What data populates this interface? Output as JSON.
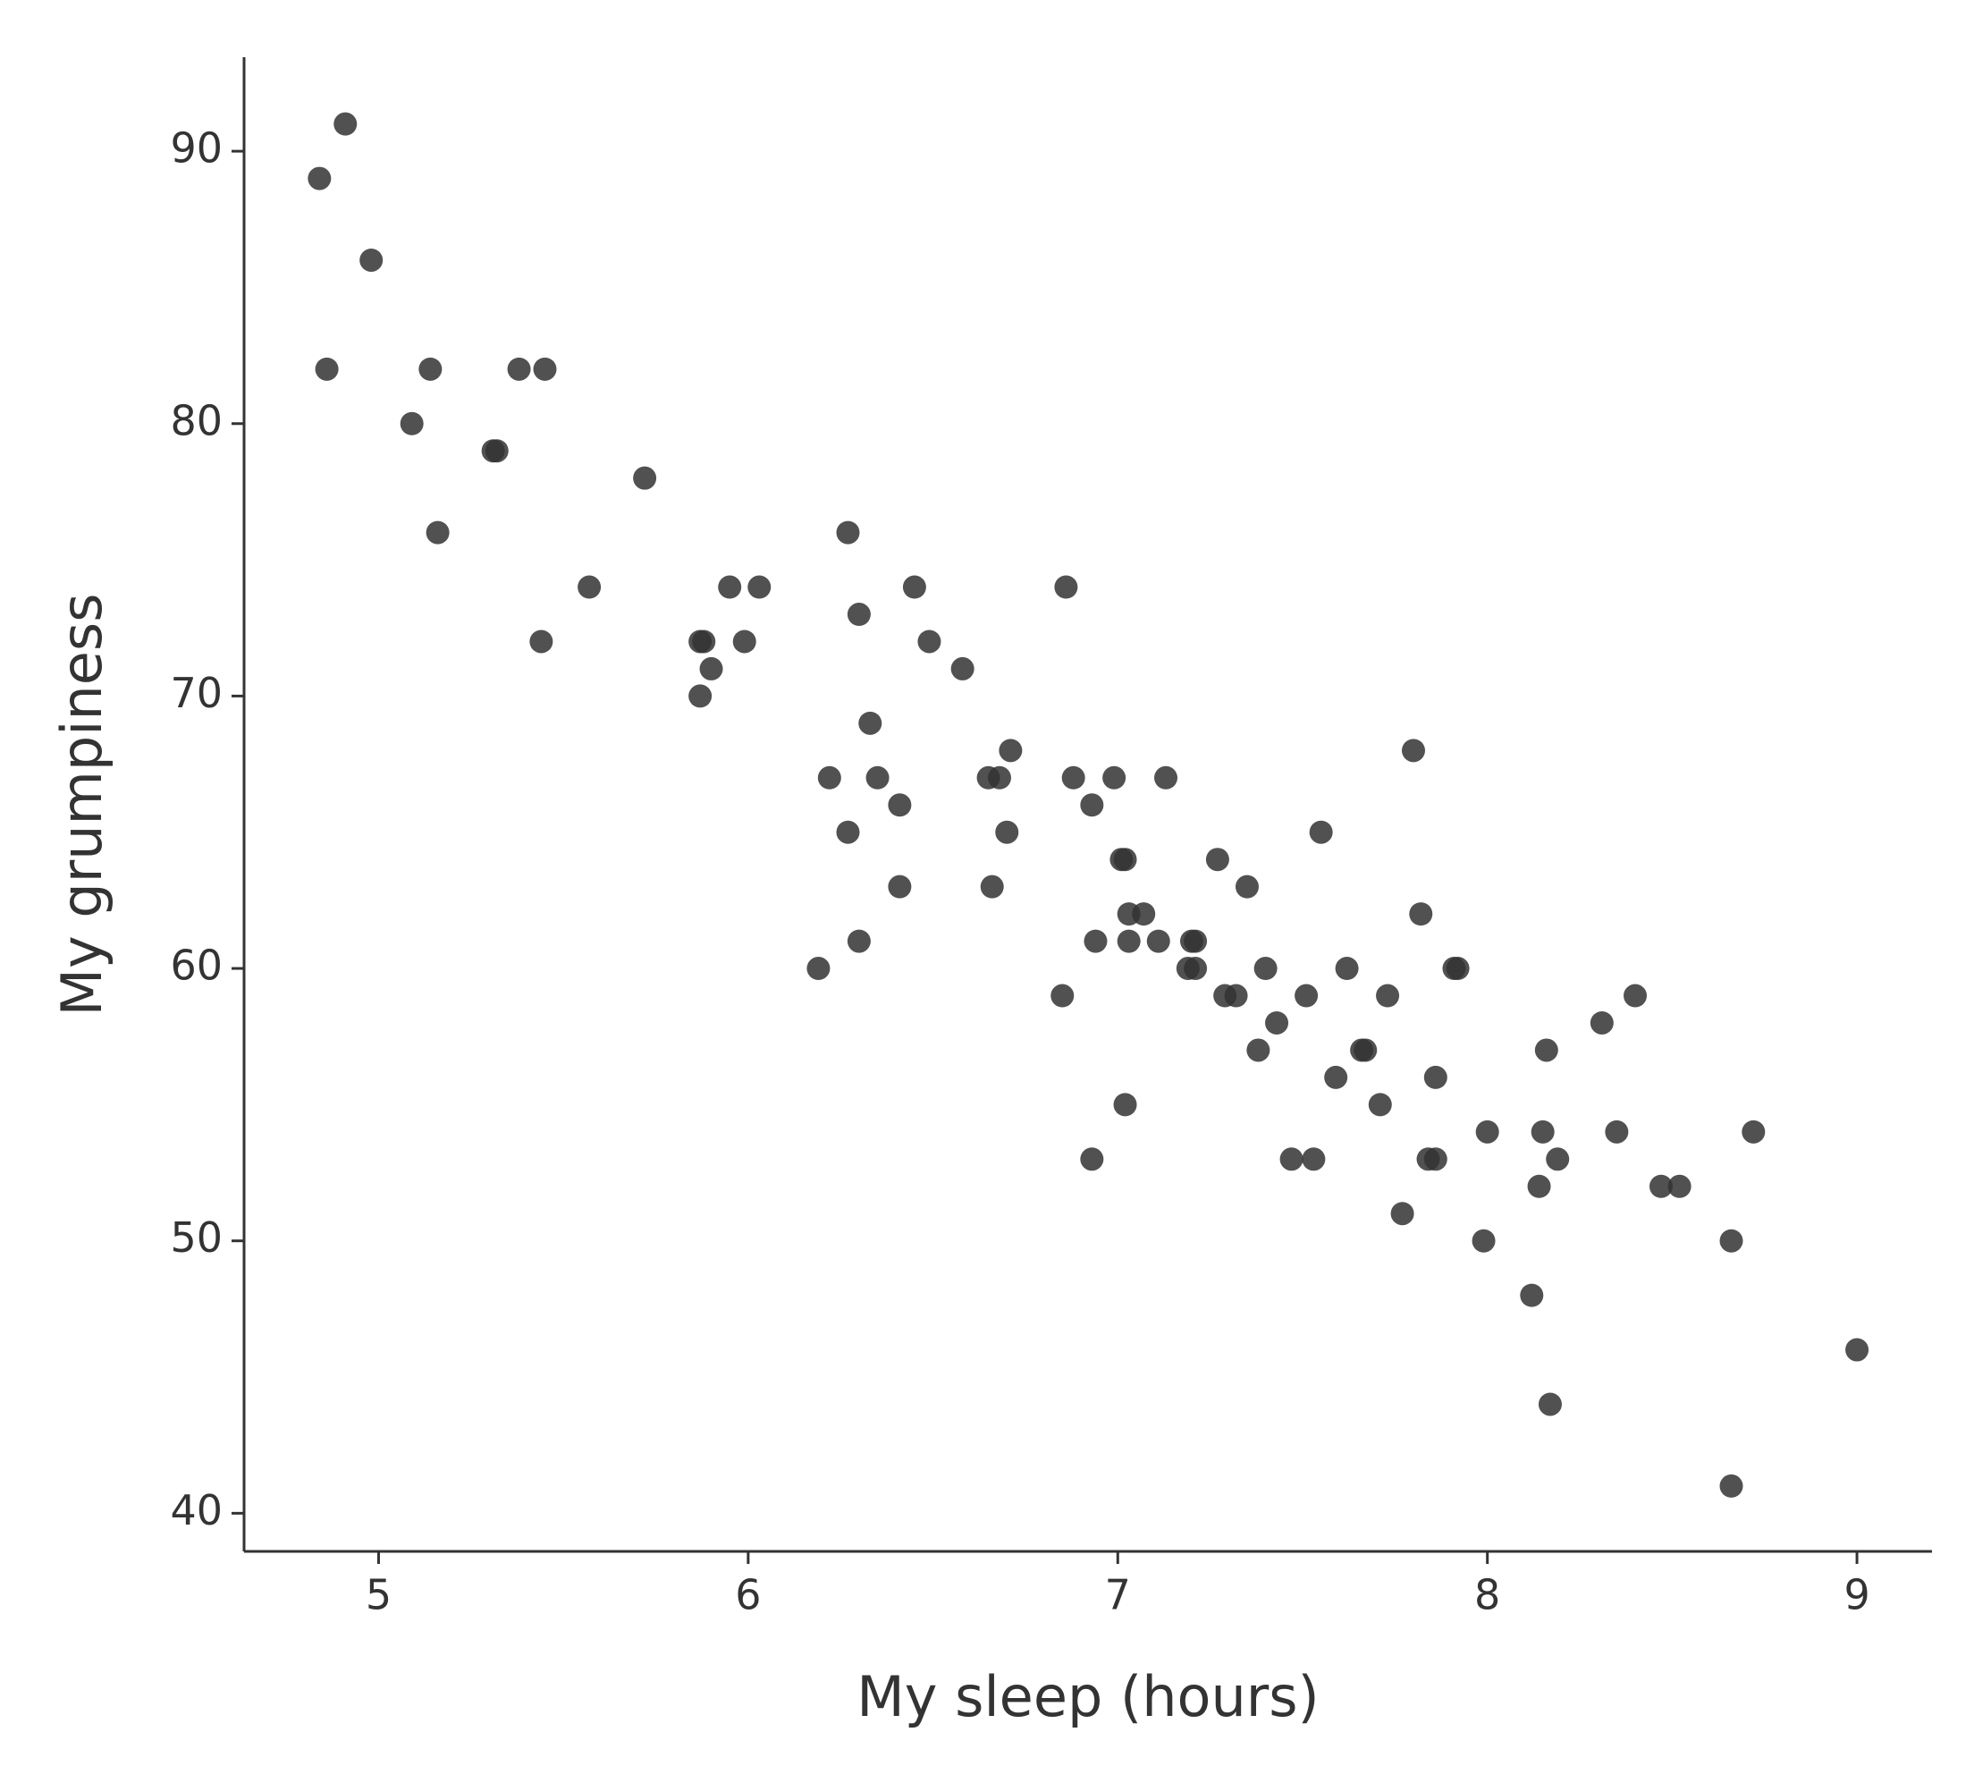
{
  "chart_data": {
    "type": "scatter",
    "x_label": "My sleep (hours)",
    "y_label": "My grumpiness",
    "xlim": [
      4.636,
      9.203
    ],
    "ylim": [
      38.6,
      93.45
    ],
    "xticks": [
      5,
      6,
      7,
      8,
      9
    ],
    "yticks": [
      40,
      50,
      60,
      70,
      80,
      90
    ],
    "color": "#333333",
    "x": [
      4.84,
      4.91,
      4.98,
      4.86,
      5.14,
      5.38,
      5.45,
      5.09,
      5.31,
      5.32,
      5.16,
      5.72,
      5.57,
      5.44,
      5.87,
      5.88,
      5.9,
      5.87,
      5.95,
      6.03,
      5.99,
      6.27,
      6.3,
      6.45,
      6.49,
      6.58,
      6.86,
      6.33,
      6.22,
      6.35,
      6.41,
      6.27,
      6.41,
      6.19,
      6.3,
      6.65,
      6.68,
      6.71,
      6.7,
      6.66,
      6.88,
      6.99,
      7.13,
      6.93,
      7.01,
      7.02,
      7.03,
      7.07,
      6.94,
      7.03,
      7.11,
      7.2,
      7.21,
      7.19,
      7.21,
      6.85,
      7.02,
      6.93,
      7.27,
      7.35,
      7.8,
      7.55,
      7.82,
      7.29,
      7.32,
      7.4,
      7.51,
      7.62,
      7.73,
      7.43,
      7.38,
      7.66,
      7.67,
      7.59,
      7.71,
      7.86,
      7.91,
      7.92,
      7.47,
      7.53,
      7.84,
      7.86,
      7.77,
      8.0,
      7.99,
      8.16,
      8.15,
      8.19,
      8.14,
      8.12,
      8.17,
      8.31,
      8.4,
      8.35,
      8.47,
      8.52,
      8.72,
      8.66,
      9.0,
      8.66
    ],
    "y": [
      89,
      91,
      86,
      82,
      82,
      82,
      82,
      80,
      79,
      79,
      76,
      78,
      74,
      72,
      72,
      72,
      71,
      70,
      74,
      74,
      72,
      76,
      73,
      74,
      72,
      71,
      74,
      69,
      67,
      67,
      66,
      65,
      63,
      60,
      61,
      67,
      67,
      68,
      65,
      63,
      67,
      67,
      67,
      66,
      64,
      64,
      62,
      62,
      61,
      61,
      61,
      61,
      61,
      60,
      60,
      59,
      55,
      53,
      64,
      63,
      68,
      65,
      62,
      59,
      59,
      60,
      59,
      60,
      59,
      58,
      57,
      57,
      57,
      56,
      55,
      56,
      60,
      60,
      53,
      53,
      53,
      53,
      51,
      54,
      50,
      57,
      54,
      53,
      52,
      48,
      44,
      58,
      59,
      54,
      52,
      52,
      54,
      50,
      46,
      41
    ]
  }
}
